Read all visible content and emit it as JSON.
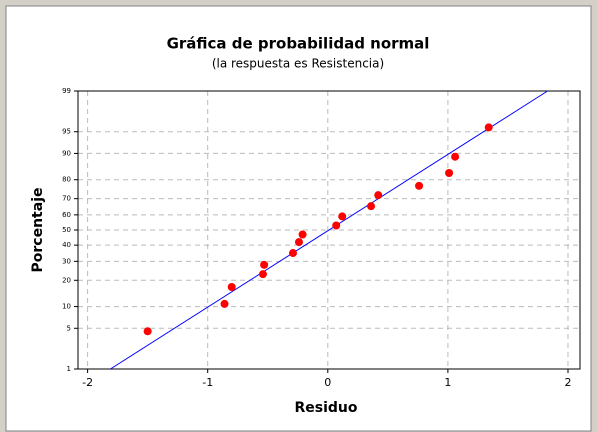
{
  "chart_data": {
    "type": "probability",
    "title": "Gráfica de probabilidad normal",
    "subtitle": "(la respuesta es Resistencia)",
    "x_label": "Residuo",
    "y_label": "Porcentaje",
    "xlim": [
      -2.08,
      2.1
    ],
    "xticks": [
      -2,
      -1,
      0,
      1,
      2
    ],
    "ylim": [
      1,
      99
    ],
    "yticks": [
      1,
      5,
      10,
      20,
      30,
      40,
      50,
      60,
      70,
      80,
      90,
      95,
      99
    ],
    "y_scale": "normal-probability",
    "grid": true,
    "color": "#ff0000",
    "line_color": "#0000ff",
    "x": [
      -1.5,
      -0.86,
      -0.8,
      -0.54,
      -0.53,
      -0.29,
      -0.24,
      -0.21,
      0.07,
      0.12,
      0.36,
      0.42,
      0.76,
      1.01,
      1.06,
      1.34
    ],
    "values": [
      4.5,
      10.8,
      17,
      23,
      28,
      35,
      42,
      47,
      53,
      59,
      65.5,
      72,
      77,
      83,
      89,
      95.7
    ],
    "fit_line": {
      "x": [
        -1.81,
        1.83
      ],
      "y": [
        1,
        99
      ]
    }
  }
}
